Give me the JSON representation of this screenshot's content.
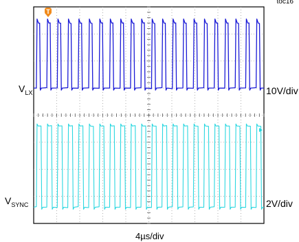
{
  "figure_id": "toc16",
  "chart_data": {
    "type": "line",
    "title": "",
    "grid": true,
    "x_divisions": 10,
    "y_divisions": 8,
    "time_scale": "4µs/div",
    "pulse_count": 22,
    "series": [
      {
        "name": "VLX",
        "label_main": "V",
        "label_sub": "LX",
        "scale": "10V/div",
        "color": "#1a1ad6",
        "baseline_div": 5.0,
        "high_level_div": 7.4,
        "duty": 0.32
      },
      {
        "name": "VSYNC",
        "label_main": "V",
        "label_sub": "SYNC",
        "scale": "2V/div",
        "color": "#2ad7e0",
        "baseline_div": 0.6,
        "high_level_div": 3.6,
        "duty": 0.45
      }
    ]
  },
  "trigger_marker": {
    "label": "T",
    "color": "#f08a1c"
  },
  "level_marker_color": "#2ad7e0"
}
